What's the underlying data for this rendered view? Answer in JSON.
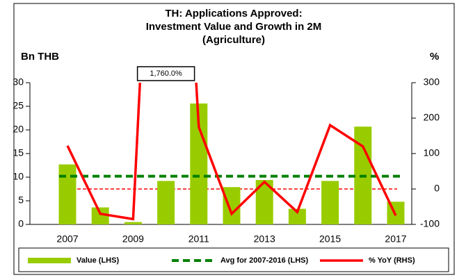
{
  "chart_data": {
    "type": "bar-line",
    "title": [
      "TH: Applications Approved:",
      "Investment Value and Growth in 2M",
      "(Agriculture)"
    ],
    "y_label": "Bn THB",
    "y2_label": "%",
    "categories": [
      "2007",
      null,
      "2009",
      null,
      "2011",
      null,
      "2013",
      null,
      "2015",
      null,
      "2017"
    ],
    "ylim": [
      0,
      30
    ],
    "yticks": [
      0,
      5,
      10,
      15,
      20,
      25,
      30
    ],
    "y2lim": [
      -100,
      300
    ],
    "y2ticks": [
      -100,
      0,
      100,
      200,
      300
    ],
    "zero_line": {
      "axis": "y2",
      "value": 0,
      "color": "#ff0000"
    },
    "series": [
      {
        "name": "Value (LHS)",
        "kind": "bar",
        "color": "#99cc00",
        "values": [
          12.7,
          3.6,
          0.5,
          9.2,
          25.6,
          7.9,
          9.4,
          3.3,
          9.2,
          20.7,
          4.8
        ]
      },
      {
        "name": "Avg for 2007-2016 (LHS)",
        "kind": "dashed-line",
        "color": "#008000",
        "values": [
          10.2,
          10.2,
          10.2,
          10.2,
          10.2,
          10.2,
          10.2,
          10.2,
          10.2,
          10.2,
          10.2
        ]
      },
      {
        "name": "% YoY (RHS)",
        "kind": "line",
        "axis": "y2",
        "color": "#ff0000",
        "values": [
          122,
          -70,
          -85,
          1760,
          175,
          -70,
          20,
          -65,
          180,
          120,
          -75
        ],
        "value_labels": [
          null,
          null,
          null,
          "1,760.0%",
          null,
          null,
          null,
          null,
          null,
          null,
          null
        ]
      }
    ]
  }
}
